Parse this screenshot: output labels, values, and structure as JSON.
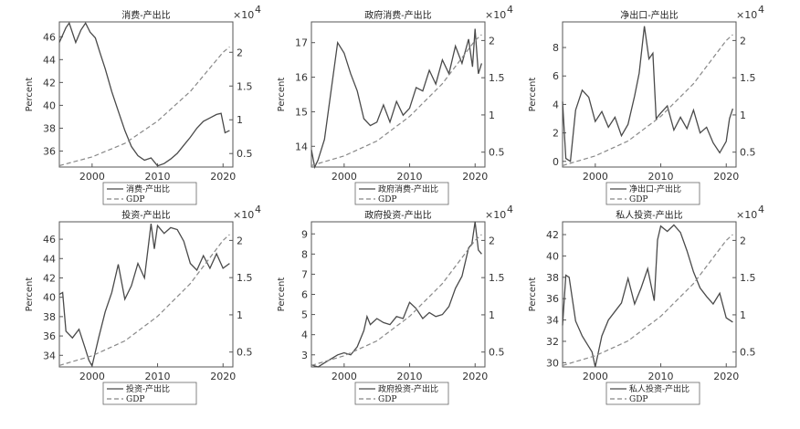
{
  "chart_data": [
    {
      "type": "line",
      "title": "消费-产出比",
      "ylabel": "Percent",
      "right_exponent_base": "×10",
      "right_exponent_power": "4",
      "x_ticks": [
        "2000",
        "2010",
        "2020"
      ],
      "x_tick_values": [
        2000,
        2010,
        2020
      ],
      "left_ticks": [
        "36",
        "38",
        "40",
        "42",
        "44",
        "46"
      ],
      "left_tick_values": [
        36,
        38,
        40,
        42,
        44,
        46
      ],
      "right_ticks": [
        "0.5",
        "1",
        "1.5",
        "2"
      ],
      "right_tick_values": [
        0.5,
        1,
        1.5,
        2
      ],
      "xlim": [
        1995,
        2021.5
      ],
      "ylim": [
        34.6,
        47.3
      ],
      "y2lim": [
        0.3,
        2.45
      ],
      "series": [
        {
          "name": "消费-产出比",
          "axis": "left",
          "style": "solid",
          "x": [
            1995,
            1996,
            1996.5,
            1997.5,
            1998.3,
            1999,
            1999.7,
            2000.5,
            2001.2,
            2002,
            2003,
            2004,
            2005,
            2006,
            2007,
            2008,
            2009,
            2010,
            2011,
            2012,
            2013,
            2014,
            2015,
            2016,
            2017,
            2018,
            2019,
            2019.7,
            2020.3,
            2021
          ],
          "y": [
            45.5,
            46.8,
            47.2,
            45.5,
            46.6,
            47.2,
            46.4,
            45.9,
            44.6,
            43.2,
            41.2,
            39.5,
            37.8,
            36.4,
            35.6,
            35.2,
            35.4,
            34.7,
            34.9,
            35.3,
            35.8,
            36.5,
            37.2,
            38.0,
            38.6,
            38.9,
            39.2,
            39.3,
            37.6,
            37.8
          ]
        },
        {
          "name": "GDP",
          "axis": "right",
          "style": "dashed",
          "x": [
            1995,
            2000,
            2005,
            2010,
            2015,
            2020,
            2021
          ],
          "y": [
            0.32,
            0.45,
            0.65,
            0.98,
            1.42,
            2.0,
            2.08
          ]
        }
      ],
      "legend": [
        "消费-产出比",
        "GDP"
      ]
    },
    {
      "type": "line",
      "title": "政府消费-产出比",
      "ylabel": "Percent",
      "right_exponent_base": "×10",
      "right_exponent_power": "4",
      "x_ticks": [
        "2000",
        "2010",
        "2020"
      ],
      "x_tick_values": [
        2000,
        2010,
        2020
      ],
      "left_ticks": [
        "14",
        "15",
        "16",
        "17"
      ],
      "left_tick_values": [
        14,
        15,
        16,
        17
      ],
      "right_ticks": [
        "0.5",
        "1",
        "1.5",
        "2"
      ],
      "right_tick_values": [
        0.5,
        1,
        1.5,
        2
      ],
      "xlim": [
        1995,
        2021.5
      ],
      "ylim": [
        13.4,
        17.6
      ],
      "y2lim": [
        0.3,
        2.25
      ],
      "series": [
        {
          "name": "政府消费-产出比",
          "axis": "left",
          "style": "solid",
          "x": [
            1995,
            1995.5,
            1996,
            1997,
            1998,
            1999,
            2000,
            2001,
            2002,
            2003,
            2004,
            2005,
            2006,
            2007,
            2008,
            2009,
            2010,
            2011,
            2012,
            2013,
            2014,
            2015,
            2016,
            2017,
            2018,
            2019,
            2019.6,
            2020,
            2020.5,
            2021
          ],
          "y": [
            13.9,
            13.4,
            13.6,
            14.2,
            15.6,
            17.0,
            16.7,
            16.1,
            15.6,
            14.8,
            14.6,
            14.7,
            15.2,
            14.7,
            15.3,
            14.9,
            15.1,
            15.7,
            15.6,
            16.2,
            15.8,
            16.5,
            16.1,
            16.9,
            16.4,
            17.1,
            16.3,
            17.4,
            16.1,
            16.4
          ]
        },
        {
          "name": "GDP",
          "axis": "right",
          "style": "dashed",
          "x": [
            1995,
            2000,
            2005,
            2010,
            2015,
            2020,
            2021
          ],
          "y": [
            0.32,
            0.45,
            0.65,
            0.98,
            1.42,
            2.0,
            2.08
          ]
        }
      ],
      "legend": [
        "政府消费-产出比",
        "GDP"
      ]
    },
    {
      "type": "line",
      "title": "净出口-产出比",
      "ylabel": "Percent",
      "right_exponent_base": "×10",
      "right_exponent_power": "4",
      "x_ticks": [
        "2000",
        "2010",
        "2020"
      ],
      "x_tick_values": [
        2000,
        2010,
        2020
      ],
      "left_ticks": [
        "0",
        "2",
        "4",
        "6",
        "8"
      ],
      "left_tick_values": [
        0,
        2,
        4,
        6,
        8
      ],
      "right_ticks": [
        "0.5",
        "1",
        "1.5",
        "2"
      ],
      "right_tick_values": [
        0.5,
        1,
        1.5,
        2
      ],
      "xlim": [
        1995,
        2021.5
      ],
      "ylim": [
        -0.4,
        9.8
      ],
      "y2lim": [
        0.3,
        2.25
      ],
      "series": [
        {
          "name": "净出口-产出比",
          "axis": "left",
          "style": "solid",
          "x": [
            1995,
            1995.5,
            1996.2,
            1997,
            1998,
            1999,
            2000,
            2001,
            2002,
            2003,
            2004,
            2005,
            2006,
            2006.7,
            2007.5,
            2008.2,
            2008.8,
            2009.3,
            2010,
            2011,
            2012,
            2013,
            2014,
            2015,
            2016,
            2017,
            2018,
            2019,
            2020,
            2020.5,
            2021
          ],
          "y": [
            4.2,
            0.2,
            0.0,
            3.6,
            5.0,
            4.5,
            2.8,
            3.5,
            2.4,
            3.1,
            1.8,
            2.6,
            4.6,
            6.2,
            9.5,
            7.2,
            7.6,
            3.0,
            3.4,
            3.9,
            2.2,
            3.1,
            2.3,
            3.6,
            2.0,
            2.4,
            1.3,
            0.6,
            1.4,
            3.0,
            3.7
          ]
        },
        {
          "name": "GDP",
          "axis": "right",
          "style": "dashed",
          "x": [
            1995,
            2000,
            2005,
            2010,
            2015,
            2020,
            2021
          ],
          "y": [
            0.32,
            0.45,
            0.65,
            0.98,
            1.42,
            2.0,
            2.08
          ]
        }
      ],
      "legend": [
        "净出口-产出比",
        "GDP"
      ]
    },
    {
      "type": "line",
      "title": "投资-产出比",
      "ylabel": "Percent",
      "right_exponent_base": "×10",
      "right_exponent_power": "4",
      "x_ticks": [
        "2000",
        "2010",
        "2020"
      ],
      "x_tick_values": [
        2000,
        2010,
        2020
      ],
      "left_ticks": [
        "34",
        "36",
        "38",
        "40",
        "42",
        "44",
        "46"
      ],
      "left_tick_values": [
        34,
        36,
        38,
        40,
        42,
        44,
        46
      ],
      "right_ticks": [
        "0.5",
        "1",
        "1.5",
        "2"
      ],
      "right_tick_values": [
        0.5,
        1,
        1.5,
        2
      ],
      "xlim": [
        1995,
        2021.5
      ],
      "ylim": [
        32.8,
        47.8
      ],
      "y2lim": [
        0.3,
        2.25
      ],
      "series": [
        {
          "name": "投资-产出比",
          "axis": "left",
          "style": "solid",
          "x": [
            1995,
            1995.5,
            1996,
            1997,
            1998,
            1999,
            1999.5,
            2000,
            2001,
            2002,
            2003,
            2004,
            2005,
            2006,
            2007,
            2008,
            2009,
            2009.5,
            2010,
            2011,
            2012,
            2013,
            2014,
            2015,
            2016,
            2017,
            2018,
            2019,
            2020,
            2021
          ],
          "y": [
            40.3,
            40.5,
            36.5,
            35.8,
            36.7,
            34.6,
            33.5,
            32.9,
            35.8,
            38.5,
            40.5,
            43.4,
            39.8,
            41.2,
            43.5,
            42.0,
            47.6,
            45.0,
            47.4,
            46.6,
            47.2,
            47.0,
            45.8,
            43.5,
            42.8,
            44.3,
            43.0,
            44.5,
            43.0,
            43.5
          ]
        },
        {
          "name": "GDP",
          "axis": "right",
          "style": "dashed",
          "x": [
            1995,
            2000,
            2005,
            2010,
            2015,
            2020,
            2021
          ],
          "y": [
            0.32,
            0.45,
            0.65,
            0.98,
            1.42,
            2.0,
            2.08
          ]
        }
      ],
      "legend": [
        "投资-产出比",
        "GDP"
      ]
    },
    {
      "type": "line",
      "title": "政府投资-产出比",
      "ylabel": "Percent",
      "right_exponent_base": "×10",
      "right_exponent_power": "4",
      "x_ticks": [
        "2000",
        "2010",
        "2020"
      ],
      "x_tick_values": [
        2000,
        2010,
        2020
      ],
      "left_ticks": [
        "3",
        "4",
        "5",
        "6",
        "7",
        "8",
        "9"
      ],
      "left_tick_values": [
        3,
        4,
        5,
        6,
        7,
        8,
        9
      ],
      "right_ticks": [
        "0.5",
        "1",
        "1.5",
        "2"
      ],
      "right_tick_values": [
        0.5,
        1,
        1.5,
        2
      ],
      "xlim": [
        1995,
        2021.5
      ],
      "ylim": [
        2.4,
        9.6
      ],
      "y2lim": [
        0.3,
        2.25
      ],
      "series": [
        {
          "name": "政府投资-产出比",
          "axis": "left",
          "style": "solid",
          "x": [
            1995,
            1996,
            1997,
            1998,
            1999,
            2000,
            2001,
            2002,
            2003,
            2003.5,
            2004,
            2005,
            2006,
            2007,
            2008,
            2009,
            2010,
            2011,
            2012,
            2013,
            2014,
            2015,
            2016,
            2017,
            2018,
            2019,
            2019.5,
            2020,
            2020.5,
            2021
          ],
          "y": [
            2.5,
            2.4,
            2.6,
            2.8,
            3.0,
            3.1,
            3.0,
            3.4,
            4.2,
            4.9,
            4.5,
            4.8,
            4.6,
            4.5,
            4.9,
            4.8,
            5.6,
            5.3,
            4.8,
            5.1,
            4.9,
            5.0,
            5.4,
            6.3,
            6.9,
            8.3,
            8.5,
            9.6,
            8.2,
            8.0
          ]
        },
        {
          "name": "GDP",
          "axis": "right",
          "style": "dashed",
          "x": [
            1995,
            2000,
            2005,
            2010,
            2015,
            2020,
            2021
          ],
          "y": [
            0.32,
            0.45,
            0.65,
            0.98,
            1.42,
            2.0,
            2.08
          ]
        }
      ],
      "legend": [
        "政府投资-产出比",
        "GDP"
      ]
    },
    {
      "type": "line",
      "title": "私人投资-产出比",
      "ylabel": "Percent",
      "right_exponent_base": "×10",
      "right_exponent_power": "4",
      "x_ticks": [
        "2000",
        "2010",
        "2020"
      ],
      "x_tick_values": [
        2000,
        2010,
        2020
      ],
      "left_ticks": [
        "30",
        "32",
        "34",
        "36",
        "38",
        "40",
        "42"
      ],
      "left_tick_values": [
        30,
        32,
        34,
        36,
        38,
        40,
        42
      ],
      "right_ticks": [
        "0.5",
        "1",
        "1.5",
        "2"
      ],
      "right_tick_values": [
        0.5,
        1,
        1.5,
        2
      ],
      "xlim": [
        1995,
        2021.5
      ],
      "ylim": [
        29.6,
        43.2
      ],
      "y2lim": [
        0.3,
        2.25
      ],
      "series": [
        {
          "name": "私人投资-产出比",
          "axis": "left",
          "style": "solid",
          "x": [
            1995,
            1995.5,
            1996,
            1997,
            1998,
            1999,
            1999.5,
            2000,
            2001,
            2002,
            2003,
            2004,
            2005,
            2006,
            2007,
            2008,
            2009,
            2009.5,
            2010,
            2011,
            2012,
            2013,
            2014,
            2015,
            2016,
            2017,
            2018,
            2019,
            2020,
            2021
          ],
          "y": [
            33.5,
            38.2,
            38.0,
            33.9,
            32.5,
            31.5,
            31.0,
            29.6,
            32.5,
            34.0,
            34.8,
            35.6,
            37.9,
            35.5,
            37.0,
            38.8,
            35.8,
            41.5,
            42.8,
            42.3,
            42.9,
            42.2,
            40.5,
            38.5,
            37.0,
            36.2,
            35.5,
            36.5,
            34.2,
            33.8
          ]
        },
        {
          "name": "GDP",
          "axis": "right",
          "style": "dashed",
          "x": [
            1995,
            2000,
            2005,
            2010,
            2015,
            2020,
            2021
          ],
          "y": [
            0.32,
            0.45,
            0.65,
            0.98,
            1.42,
            2.0,
            2.08
          ]
        }
      ],
      "legend": [
        "私人投资-产出比",
        "GDP"
      ]
    }
  ]
}
